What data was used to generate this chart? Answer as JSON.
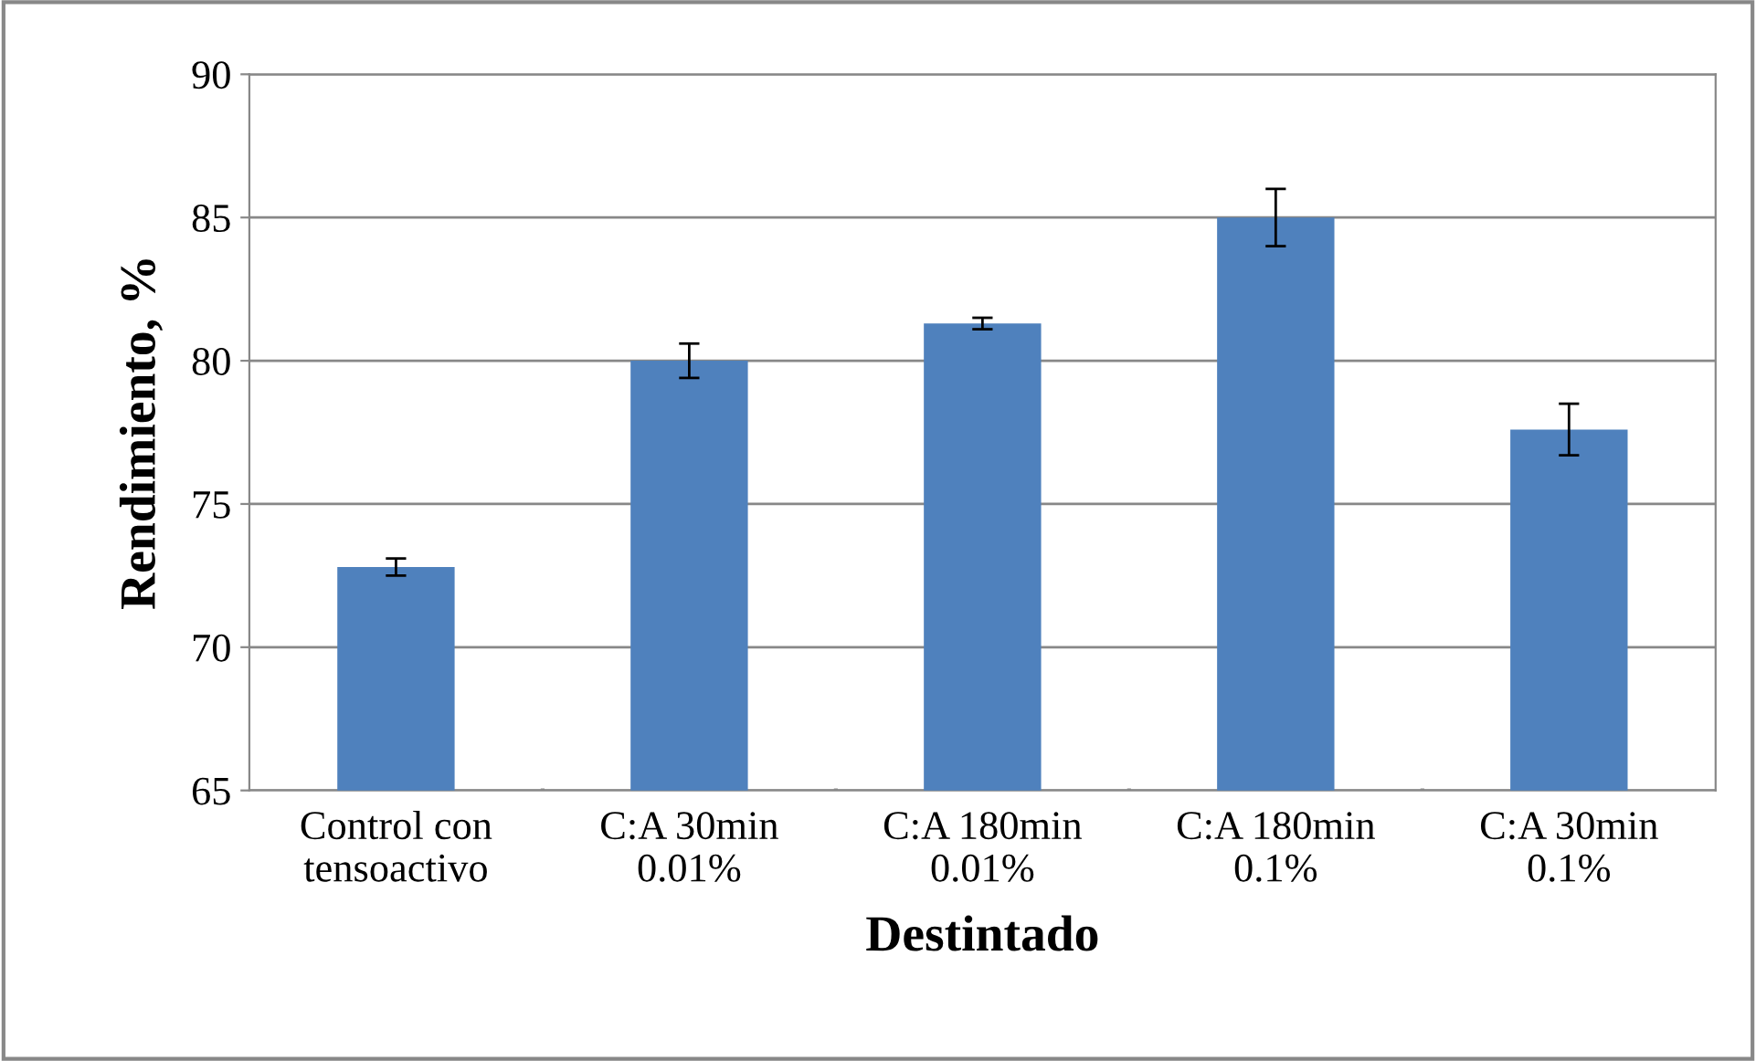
{
  "chart_data": {
    "type": "bar",
    "xlabel": "Destintado",
    "ylabel": "Rendimiento, %",
    "categories": [
      "Control con\ntensoactivo",
      "C:A 30min\n0.01%",
      "C:A 180min\n0.01%",
      "C:A 180min\n0.1%",
      "C:A 30min\n0.1%"
    ],
    "values": [
      72.8,
      80.0,
      81.3,
      85.0,
      77.6
    ],
    "errors": [
      0.3,
      0.6,
      0.2,
      1.0,
      0.9
    ],
    "color": "#4f81bd",
    "ylim": [
      65,
      90
    ],
    "yticks": [
      65,
      70,
      75,
      80,
      85,
      90
    ],
    "grid": "y"
  }
}
